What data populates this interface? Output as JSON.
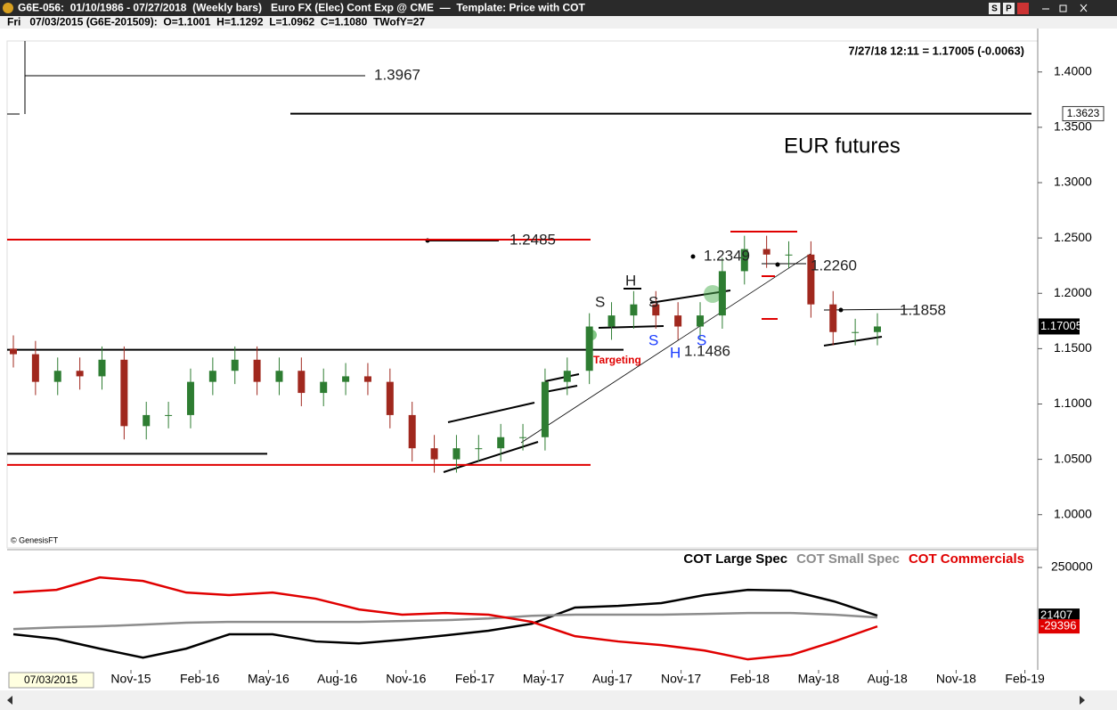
{
  "window": {
    "title": "G6E-056:  01/10/1986 - 07/27/2018  (Weekly bars)   Euro FX (Elec) Cont Exp @ CME  —  Template: Price with COT",
    "buttons": [
      "S",
      "P"
    ],
    "info": "Fri   07/03/2015 (G6E-201509):  O=1.1001  H=1.1292  L=1.0962  C=1.1080  TWofY=27",
    "cursor_date": "07/03/2015",
    "quote": "7/27/18 12:11 = 1.17005 (-0.0063)",
    "credit": "© GenesisFT"
  },
  "chart_data": [
    {
      "type": "candlestick",
      "title": "EUR futures",
      "open": [
        1.15,
        1.145,
        1.12,
        1.13,
        1.125,
        1.14,
        1.08,
        1.09,
        1.09,
        1.12,
        1.13,
        1.14,
        1.12,
        1.13,
        1.11,
        1.12,
        1.125,
        1.12,
        1.09,
        1.06,
        1.05,
        1.06,
        1.06,
        1.07,
        1.07,
        1.12,
        1.13,
        1.17,
        1.18,
        1.19,
        1.18,
        1.17,
        1.18,
        1.22,
        1.24,
        1.235,
        1.235,
        1.19,
        1.165,
        1.165
      ],
      "high": [
        1.162,
        1.157,
        1.142,
        1.142,
        1.152,
        1.152,
        1.102,
        1.102,
        1.132,
        1.142,
        1.152,
        1.152,
        1.142,
        1.142,
        1.132,
        1.137,
        1.137,
        1.132,
        1.102,
        1.072,
        1.072,
        1.072,
        1.082,
        1.082,
        1.132,
        1.142,
        1.182,
        1.192,
        1.202,
        1.202,
        1.192,
        1.192,
        1.232,
        1.252,
        1.252,
        1.247,
        1.247,
        1.202,
        1.177,
        1.182
      ],
      "low": [
        1.133,
        1.108,
        1.108,
        1.113,
        1.113,
        1.068,
        1.068,
        1.078,
        1.078,
        1.108,
        1.118,
        1.108,
        1.108,
        1.098,
        1.098,
        1.108,
        1.108,
        1.078,
        1.048,
        1.038,
        1.038,
        1.048,
        1.048,
        1.058,
        1.058,
        1.108,
        1.118,
        1.158,
        1.168,
        1.168,
        1.158,
        1.158,
        1.168,
        1.208,
        1.223,
        1.223,
        1.178,
        1.153,
        1.153,
        1.153
      ],
      "close": [
        1.145,
        1.12,
        1.13,
        1.125,
        1.14,
        1.08,
        1.09,
        1.09,
        1.12,
        1.13,
        1.14,
        1.12,
        1.13,
        1.11,
        1.12,
        1.125,
        1.12,
        1.09,
        1.06,
        1.05,
        1.06,
        1.06,
        1.07,
        1.07,
        1.12,
        1.13,
        1.17,
        1.18,
        1.19,
        1.18,
        1.17,
        1.18,
        1.22,
        1.24,
        1.235,
        1.235,
        1.19,
        1.165,
        1.165,
        1.17005
      ],
      "up_color": "#2e7d32",
      "down_color": "#a0281e",
      "ylim": [
        0.97,
        1.428
      ],
      "yticks": [
        {
          "value": 1.0,
          "label": "1.0000"
        },
        {
          "value": 1.05,
          "label": "1.0500"
        },
        {
          "value": 1.1,
          "label": "1.1000"
        },
        {
          "value": 1.15,
          "label": "1.1500"
        },
        {
          "value": 1.2,
          "label": "1.2000"
        },
        {
          "value": 1.25,
          "label": "1.2500"
        },
        {
          "value": 1.3,
          "label": "1.3000"
        },
        {
          "value": 1.35,
          "label": "1.3500"
        },
        {
          "value": 1.4,
          "label": "1.4000"
        }
      ],
      "hlines": [
        {
          "value": 1.3623,
          "color": "#000000"
        },
        {
          "value": 1.2485,
          "color": "#e00000"
        },
        {
          "value": 1.149,
          "color": "#000000"
        },
        {
          "value": 1.045,
          "color": "#e00000"
        },
        {
          "value": 1.055,
          "color": "#000000"
        }
      ],
      "marker_label": "1.3623",
      "annotations": [
        "1.3967",
        "1.2485",
        "1.2349",
        "1.2260",
        "1.1858",
        "1.1486",
        "Targeting",
        "S",
        "H",
        "S",
        "S",
        "H",
        "S"
      ]
    },
    {
      "type": "line",
      "series": [
        {
          "name": "COT Large Spec",
          "color": "#000000",
          "values": [
            -67000,
            -89000,
            -135000,
            -178000,
            -135000,
            -67000,
            -67000,
            -101000,
            -110000,
            -93000,
            -72000,
            -50000,
            -17000,
            60000,
            68000,
            81000,
            119000,
            144000,
            140000,
            89000,
            21407
          ]
        },
        {
          "name": "COT Small Spec",
          "color": "#8c8c8c",
          "values": [
            -42000,
            -34000,
            -29000,
            -21000,
            -12000,
            -8000,
            -8000,
            -8000,
            -8000,
            -4000,
            0,
            8000,
            21000,
            26000,
            26000,
            26000,
            30000,
            34000,
            34000,
            26000,
            13000
          ]
        },
        {
          "name": "COT Commercials",
          "color": "#e00000",
          "values": [
            131000,
            144000,
            203000,
            186000,
            131000,
            119000,
            131000,
            102000,
            51000,
            26000,
            34000,
            26000,
            -8000,
            -76000,
            -101000,
            -118000,
            -144000,
            -186000,
            -165000,
            -101000,
            -29396
          ]
        }
      ],
      "ylim": [
        -236000,
        322000
      ],
      "yticks": [
        250000
      ],
      "x_labels": [
        "Nov-15",
        "Feb-16",
        "May-16",
        "Aug-16",
        "Nov-16",
        "Feb-17",
        "May-17",
        "Aug-17",
        "Nov-17",
        "Feb-18",
        "May-18",
        "Aug-18",
        "Nov-18",
        "Feb-19"
      ]
    }
  ]
}
